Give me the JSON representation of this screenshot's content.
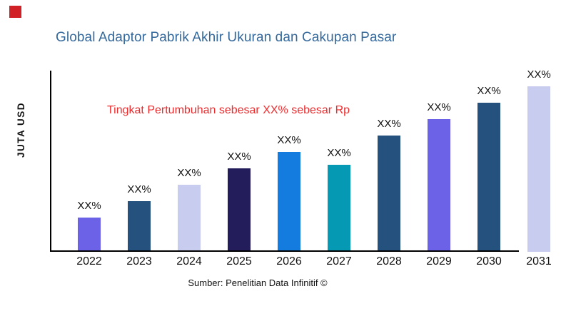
{
  "brand_marker": {
    "color": "#D22027"
  },
  "title": {
    "text": "Global Adaptor Pabrik Akhir Ukuran dan Cakupan Pasar",
    "color": "#34689B"
  },
  "annotation": {
    "text": "Tingkat Pertumbuhan sebesar XX% sebesar Rp",
    "color": "#EE2B2D"
  },
  "y_axis": {
    "label": "JUTA USD"
  },
  "source": {
    "text": "Sumber: Penelitian Data Infinitif ©"
  },
  "chart_data": {
    "type": "bar",
    "title": "Global Adaptor Pabrik Akhir Ukuran dan Cakupan Pasar",
    "xlabel": "",
    "ylabel": "JUTA USD",
    "categories": [
      "2022",
      "2023",
      "2024",
      "2025",
      "2026",
      "2027",
      "2028",
      "2029",
      "2030",
      "2031"
    ],
    "values": [
      19,
      28,
      37,
      46,
      55,
      48,
      64,
      73,
      82,
      91
    ],
    "bar_labels": [
      "XX%",
      "XX%",
      "XX%",
      "XX%",
      "XX%",
      "XX%",
      "XX%",
      "XX%",
      "XX%",
      "XX%"
    ],
    "bar_colors": [
      "#6C62E8",
      "#25517E",
      "#C8CCEE",
      "#231D5C",
      "#137CDE",
      "#0699B4",
      "#25517E",
      "#6C62E8",
      "#25517E",
      "#C8CCEE"
    ],
    "ylim": [
      0,
      100
    ],
    "y_tick_labels": [],
    "grid": false,
    "legend": "none",
    "annotation": "Tingkat Pertumbuhan sebesar XX% sebesar Rp",
    "source": "Sumber: Penelitian Data Infinitif ©"
  }
}
